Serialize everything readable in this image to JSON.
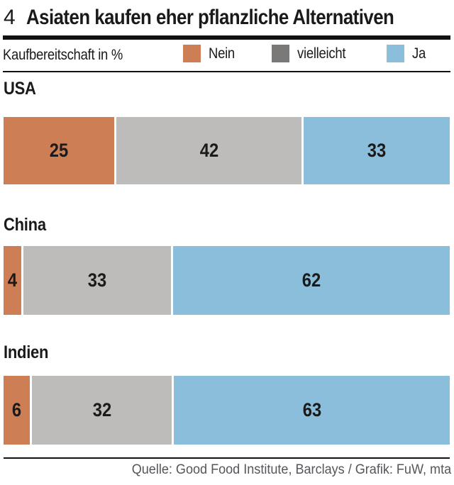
{
  "header": {
    "index": "4",
    "title": "Asiaten kaufen eher pflanzliche Alternativen"
  },
  "legend": {
    "label": "Kaufbereitschaft in %",
    "items": [
      {
        "name": "Nein",
        "swatch_color": "#cd7e54"
      },
      {
        "name": "vielleicht",
        "swatch_color": "#7b7977"
      },
      {
        "name": "Ja",
        "swatch_color": "#8abedb"
      }
    ]
  },
  "footer": {
    "source": "Quelle: Good Food Institute, Barclays / Grafik: FuW, mta"
  },
  "chart_data": {
    "type": "bar",
    "stacked": true,
    "orientation": "horizontal",
    "title": "Asiaten kaufen eher pflanzliche Alternativen",
    "subtitle": "Kaufbereitschaft in %",
    "unit": "%",
    "xlim": [
      0,
      100
    ],
    "value_labels": "inside-center",
    "categories": [
      "USA",
      "China",
      "Indien"
    ],
    "series": [
      {
        "name": "Nein",
        "color": "#cd7e54",
        "values": [
          25,
          4,
          6
        ]
      },
      {
        "name": "vielleicht",
        "color": "#bdbcba",
        "values": [
          42,
          33,
          32
        ]
      },
      {
        "name": "Ja",
        "color": "#8abedb",
        "values": [
          33,
          62,
          63
        ]
      }
    ],
    "source": "Quelle: Good Food Institute, Barclays / Grafik: FuW, mta"
  }
}
